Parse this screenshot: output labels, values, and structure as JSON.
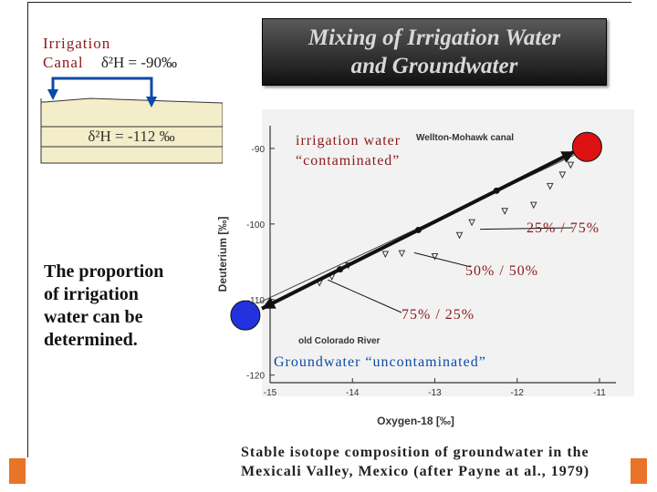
{
  "canal": {
    "line1": "Irrigation",
    "line2": "Canal",
    "delta_canal": "δ²H = -90‰"
  },
  "title": {
    "line1": "Mixing of Irrigation Water",
    "line2": "and Groundwater"
  },
  "groundwater": {
    "delta_gw": "δ²H = -112 ‰"
  },
  "proportion_text": {
    "line1": "The proportion",
    "line2": "of irrigation",
    "line3": "water can be",
    "line4": "determined."
  },
  "annotations": {
    "irrigation_water": "irrigation water",
    "contaminated": "“contaminated”",
    "wellton_label": "Wellton-Mohawk canal",
    "river_label": "old Colorado River",
    "mix_25_75": "25%  /  75%",
    "mix_50_50": "50%  /  50%",
    "mix_75_25": "75%  /  25%",
    "groundwater_uncontaminated": "Groundwater “uncontaminated”"
  },
  "chart_data": {
    "type": "scatter",
    "title": "",
    "xlabel": "Oxygen-18 [‰]",
    "ylabel": "Deuterium [‰]",
    "xlim": [
      -15,
      -10.8
    ],
    "ylim": [
      -121,
      -87
    ],
    "x_ticks": [
      -15,
      -14,
      -13,
      -12,
      -11
    ],
    "x_tick_labels": [
      "-15",
      "-14",
      "-13",
      "-12",
      "-11"
    ],
    "y_ticks": [
      -90,
      -100,
      -110,
      -120
    ],
    "y_tick_labels": [
      "-90",
      "-100",
      "-110",
      "-120"
    ],
    "endpoints": {
      "irrigation": {
        "x": -11.15,
        "y": -89.8,
        "color": "#dd1111"
      },
      "groundwater": {
        "x": -15.3,
        "y": -112.1,
        "color": "#2233dd"
      }
    },
    "mixing_line": {
      "x": [
        -15.1,
        -11.3
      ],
      "y": [
        -111.2,
        -90.4
      ]
    },
    "samples": [
      {
        "x": -14.4,
        "y": -107.8
      },
      {
        "x": -14.25,
        "y": -107.0
      },
      {
        "x": -14.05,
        "y": -105.5
      },
      {
        "x": -13.6,
        "y": -104.0
      },
      {
        "x": -13.4,
        "y": -103.9
      },
      {
        "x": -13.0,
        "y": -104.3
      },
      {
        "x": -12.7,
        "y": -101.5
      },
      {
        "x": -12.55,
        "y": -99.8
      },
      {
        "x": -12.15,
        "y": -98.3
      },
      {
        "x": -11.8,
        "y": -97.5
      },
      {
        "x": -11.6,
        "y": -95.0
      },
      {
        "x": -11.45,
        "y": -93.5
      },
      {
        "x": -11.35,
        "y": -92.2
      }
    ]
  },
  "caption": {
    "line1": "Stable isotope composition of groundwater in the",
    "line2": "Mexicali Valley, Mexico (after Payne at al., 1979)"
  },
  "colors": {
    "annotation_red": "#8b1a1a",
    "water_blue": "#0b4aa6",
    "aquifer_fill": "#f3eec9"
  }
}
